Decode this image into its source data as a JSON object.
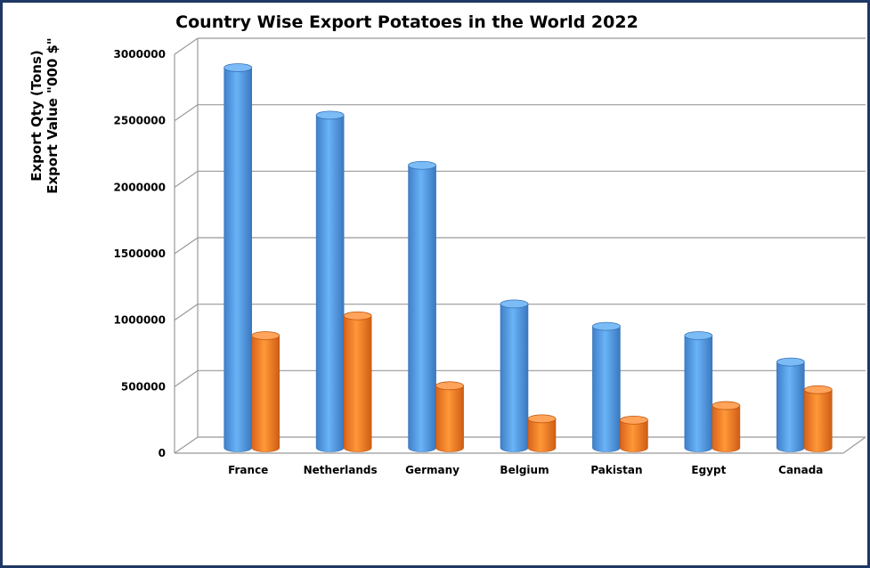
{
  "chart_data": {
    "type": "bar",
    "title": "Country Wise Export Potatoes in the World 2022",
    "ylabel": [
      "Export Qty (Tons)",
      "Export Value \"000 $\""
    ],
    "xlabel": "",
    "categories": [
      "France",
      "Netherlands",
      "Germany",
      "Belgium",
      "Pakistan",
      "Egypt",
      "Canada"
    ],
    "series": [
      {
        "values": [
          2880000,
          2520000,
          2140000,
          1090000,
          920000,
          850000,
          650000
        ],
        "color": "#5ba3ec"
      },
      {
        "values": [
          850000,
          1000000,
          470000,
          220000,
          210000,
          320000,
          440000
        ],
        "color": "#f5862a"
      }
    ],
    "ylim": [
      0,
      3000000
    ],
    "yticks": [
      "0",
      "500000",
      "1000000",
      "1500000",
      "2000000",
      "2500000",
      "3000000"
    ],
    "grid": true,
    "legend": "none",
    "style": "3d-cylinder"
  }
}
